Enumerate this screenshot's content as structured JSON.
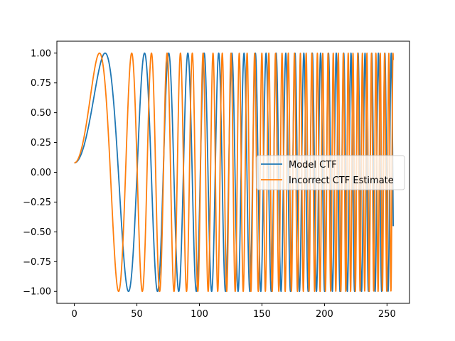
{
  "chart_data": {
    "type": "line",
    "xlim": [
      -14,
      268
    ],
    "ylim": [
      -1.1,
      1.1
    ],
    "x_ticks": [
      0,
      50,
      100,
      150,
      200,
      250
    ],
    "x_tick_labels": [
      "0",
      "50",
      "100",
      "150",
      "200",
      "250"
    ],
    "y_ticks": [
      -1.0,
      -0.75,
      -0.5,
      -0.25,
      0.0,
      0.25,
      0.5,
      0.75,
      1.0
    ],
    "y_tick_labels": [
      "−1.00",
      "−0.75",
      "−0.50",
      "−0.25",
      "0.00",
      "0.25",
      "0.50",
      "0.75",
      "1.00"
    ],
    "grid": false,
    "legend_position": "center-right",
    "x_range": [
      0,
      255
    ],
    "series": [
      {
        "name": "Model CTF",
        "color": "#1f77b4",
        "phase_quadratic_coeff": 0.00247,
        "phase_offset": 1.65
      },
      {
        "name": "Incorrect CTF Estimate",
        "color": "#ff7f0e",
        "phase_quadratic_coeff": 0.0037,
        "phase_offset": 1.65
      }
    ]
  }
}
